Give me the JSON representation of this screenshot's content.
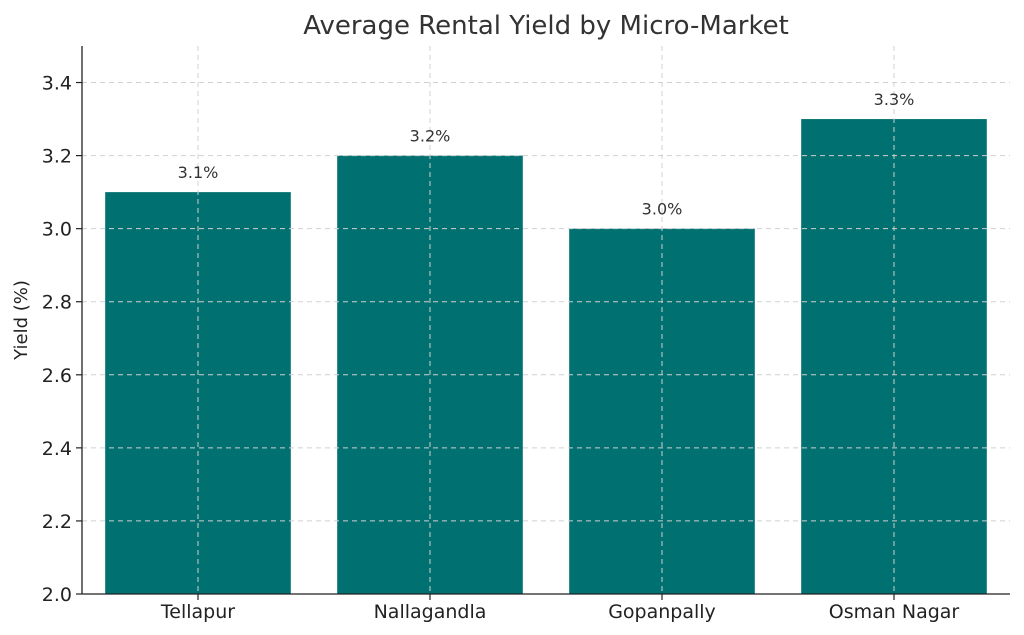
{
  "chart_data": {
    "type": "bar",
    "title": "Average Rental Yield by Micro-Market",
    "xlabel": "",
    "ylabel": "Yield (%)",
    "categories": [
      "Tellapur",
      "Nallagandla",
      "Gopanpally",
      "Osman Nagar"
    ],
    "values": [
      3.1,
      3.2,
      3.0,
      3.3
    ],
    "data_labels": [
      "3.1%",
      "3.2%",
      "3.0%",
      "3.3%"
    ],
    "ylim": [
      2.0,
      3.5
    ],
    "yticks": [
      2.0,
      2.2,
      2.4,
      2.6,
      2.8,
      3.0,
      3.2,
      3.4
    ],
    "ytick_labels": [
      "2.0",
      "2.2",
      "2.4",
      "2.6",
      "2.8",
      "3.0",
      "3.2",
      "3.4"
    ],
    "grid": true,
    "bar_color": "#007070"
  }
}
